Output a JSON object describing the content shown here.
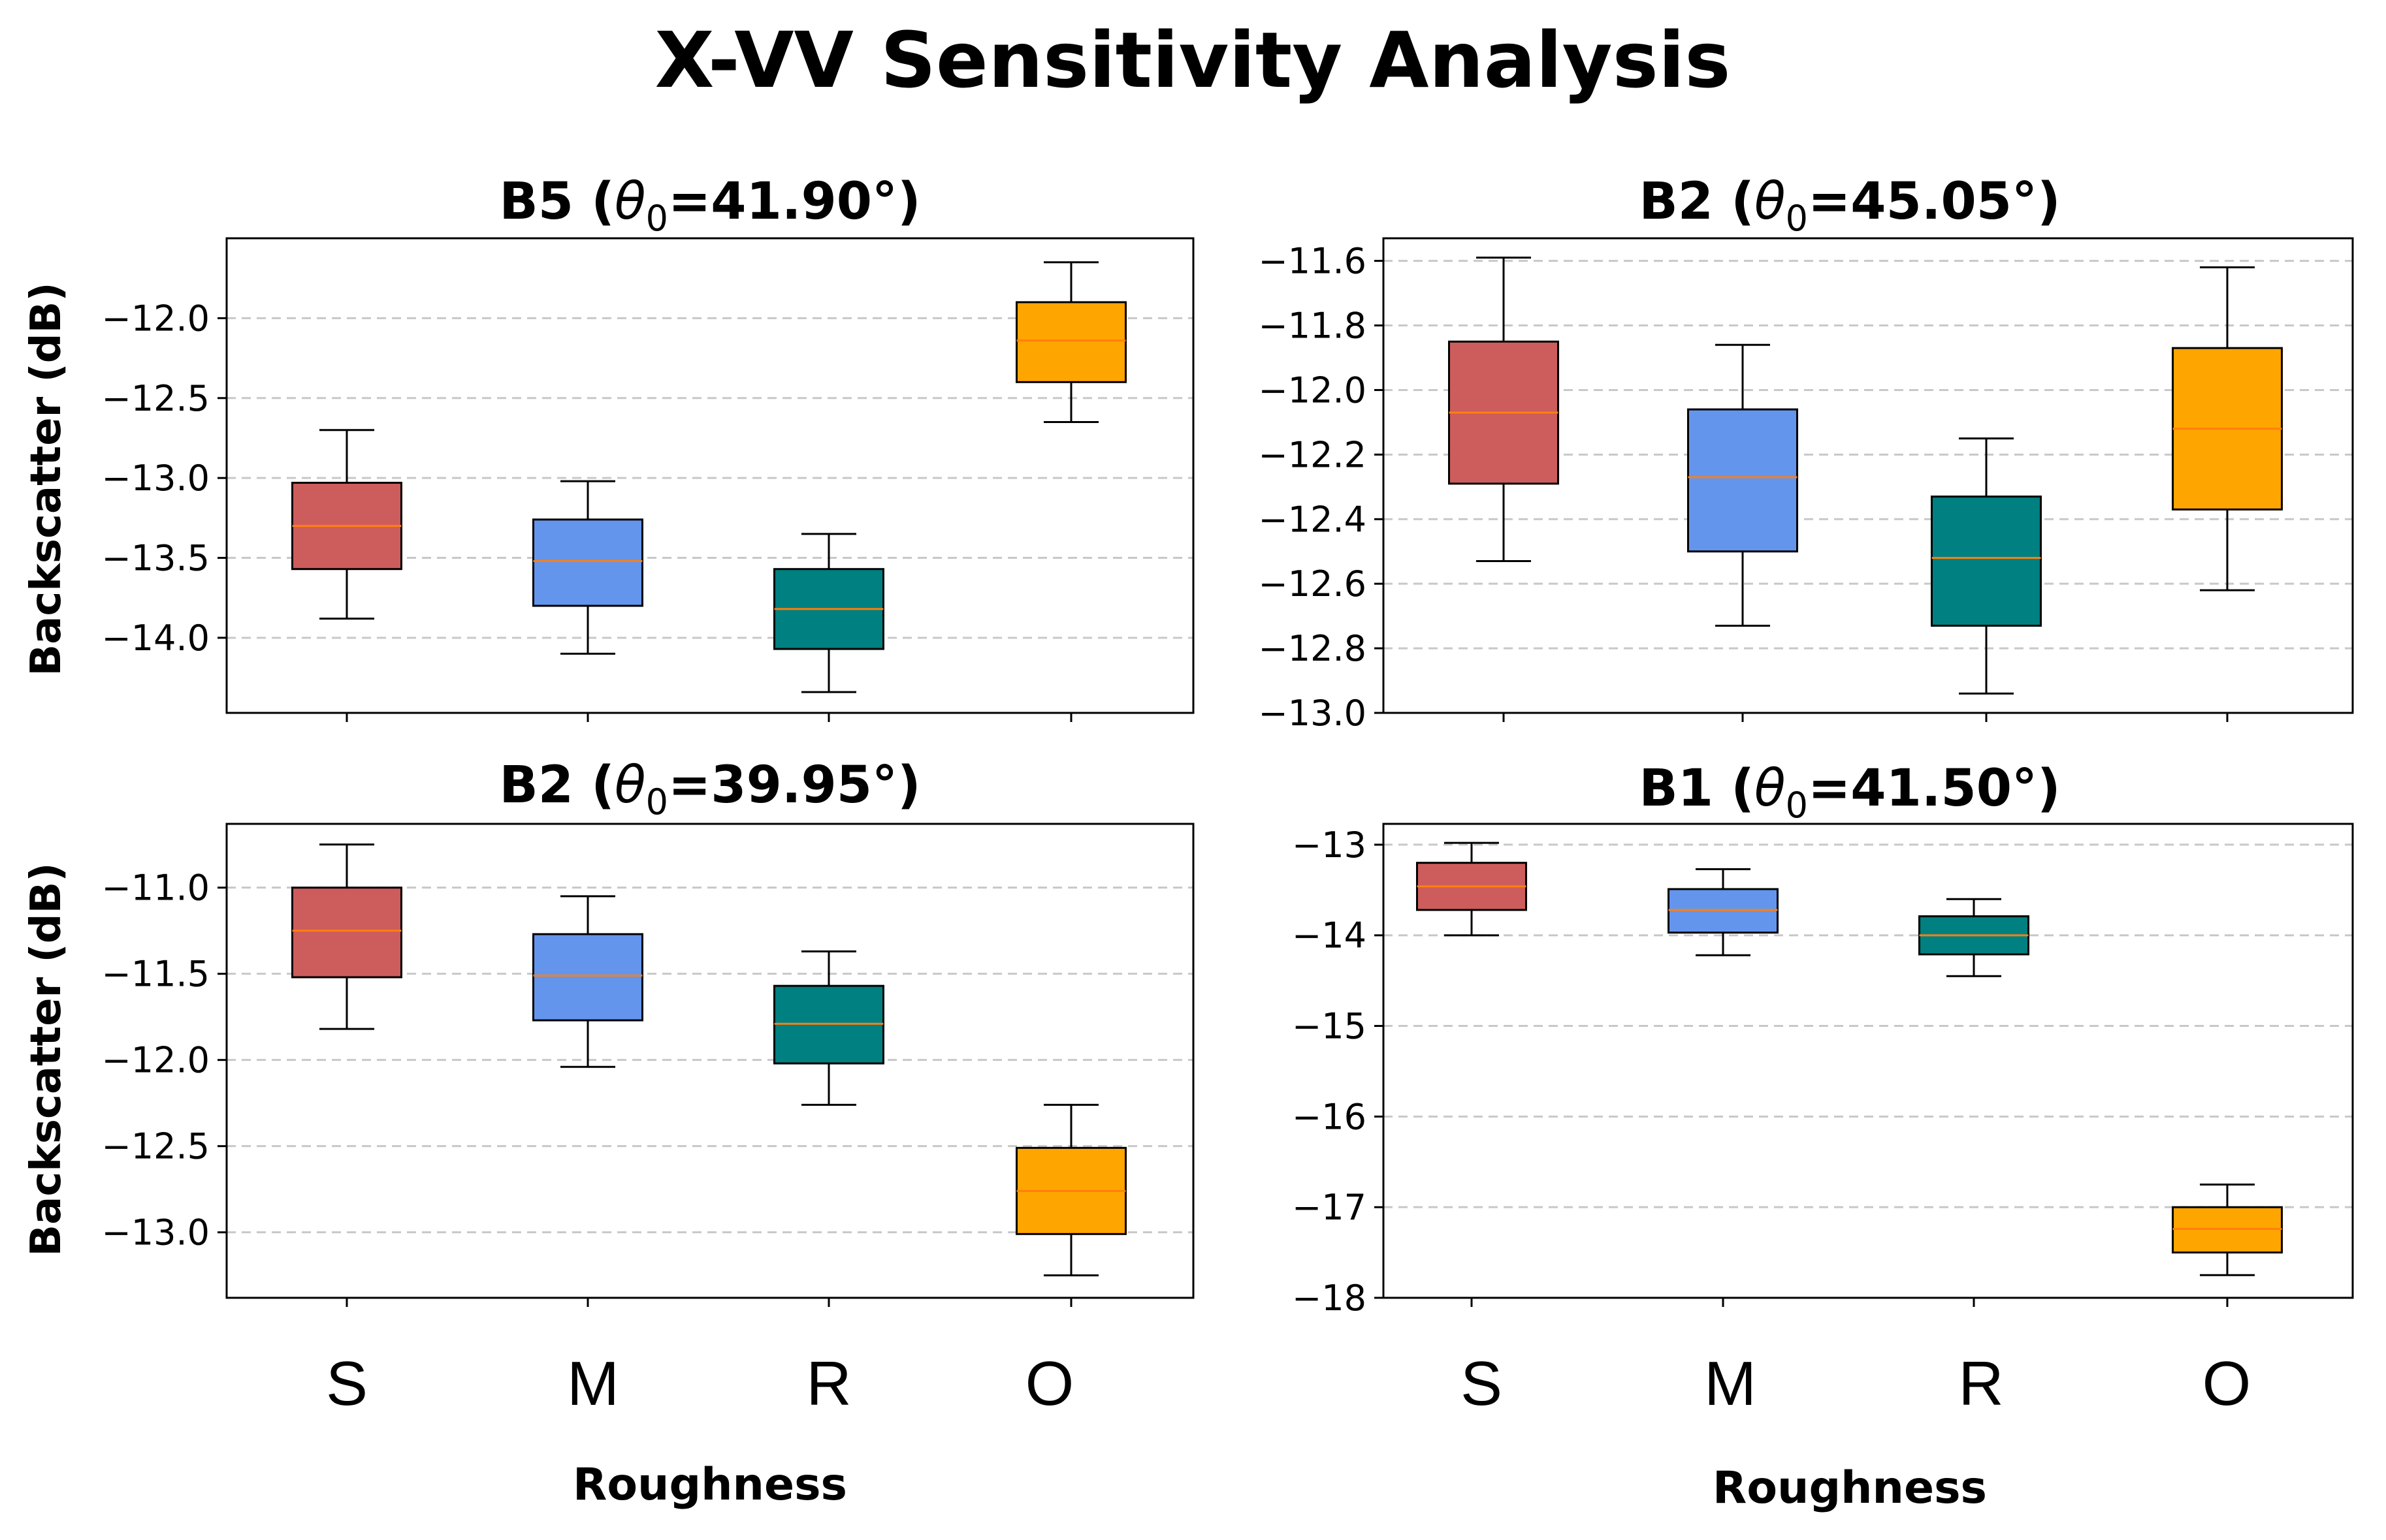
{
  "title": "X-VV Sensitivity Analysis",
  "ylabel": "Backscatter (dB)",
  "xlabel": "Roughness",
  "categories": [
    "S",
    "M",
    "R",
    "O"
  ],
  "colors": {
    "S": "#cd5c5c",
    "M": "#6495ed",
    "R": "#008080",
    "O": "#ffa500",
    "median": "#ff7f0e",
    "grid": "#c8c8c8",
    "axis": "#000000"
  },
  "panel_titles": [
    {
      "band": "B5",
      "theta_symbol": "θ",
      "theta_sub": "0",
      "value": "=41.90°)"
    },
    {
      "band": "B2",
      "theta_symbol": "θ",
      "theta_sub": "0",
      "value": "=45.05°)"
    },
    {
      "band": "B2",
      "theta_symbol": "θ",
      "theta_sub": "0",
      "value": "=39.95°)"
    },
    {
      "band": "B1",
      "theta_symbol": "θ",
      "theta_sub": "0",
      "value": "=41.50°)"
    }
  ],
  "chart_data": [
    {
      "type": "box",
      "title": "B5 (θ0=41.90°)",
      "xlabel": "",
      "ylabel": "Backscatter (dB)",
      "ylim": [
        -14.47,
        -11.5
      ],
      "yticks": [
        -12.0,
        -12.5,
        -13.0,
        -13.5,
        -14.0
      ],
      "ytick_labels": [
        "−12.0",
        "−12.5",
        "−13.0",
        "−13.5",
        "−14.0"
      ],
      "grid": true,
      "categories": [
        "S",
        "M",
        "R",
        "O"
      ],
      "boxes": [
        {
          "category": "S",
          "whisker_high": -12.7,
          "q3": -13.03,
          "median": -13.3,
          "q1": -13.57,
          "whisker_low": -13.88
        },
        {
          "category": "M",
          "whisker_high": -13.02,
          "q3": -13.26,
          "median": -13.52,
          "q1": -13.8,
          "whisker_low": -14.1
        },
        {
          "category": "R",
          "whisker_high": -13.35,
          "q3": -13.57,
          "median": -13.82,
          "q1": -14.07,
          "whisker_low": -14.34
        },
        {
          "category": "O",
          "whisker_high": -11.65,
          "q3": -11.9,
          "median": -12.14,
          "q1": -12.4,
          "whisker_low": -12.65
        }
      ]
    },
    {
      "type": "box",
      "title": "B2 (θ0=45.05°)",
      "xlabel": "",
      "ylabel": "",
      "ylim": [
        -13.0,
        -11.53
      ],
      "yticks": [
        -11.6,
        -11.8,
        -12.0,
        -12.2,
        -12.4,
        -12.6,
        -12.8,
        -13.0
      ],
      "ytick_labels": [
        "−11.6",
        "−11.8",
        "−12.0",
        "−12.2",
        "−12.4",
        "−12.6",
        "−12.8",
        "−13.0"
      ],
      "grid": true,
      "categories": [
        "S",
        "M",
        "R",
        "O"
      ],
      "boxes": [
        {
          "category": "S",
          "whisker_high": -11.59,
          "q3": -11.85,
          "median": -12.07,
          "q1": -12.29,
          "whisker_low": -12.53
        },
        {
          "category": "M",
          "whisker_high": -11.86,
          "q3": -12.06,
          "median": -12.27,
          "q1": -12.5,
          "whisker_low": -12.73
        },
        {
          "category": "R",
          "whisker_high": -12.15,
          "q3": -12.33,
          "median": -12.52,
          "q1": -12.73,
          "whisker_low": -12.94
        },
        {
          "category": "O",
          "whisker_high": -11.62,
          "q3": -11.87,
          "median": -12.12,
          "q1": -12.37,
          "whisker_low": -12.62
        }
      ]
    },
    {
      "type": "box",
      "title": "B2 (θ0=39.95°)",
      "xlabel": "Roughness",
      "ylabel": "Backscatter (dB)",
      "ylim": [
        -13.38,
        -10.63
      ],
      "yticks": [
        -11.0,
        -11.5,
        -12.0,
        -12.5,
        -13.0
      ],
      "ytick_labels": [
        "−11.0",
        "−11.5",
        "−12.0",
        "−12.5",
        "−13.0"
      ],
      "grid": true,
      "categories": [
        "S",
        "M",
        "R",
        "O"
      ],
      "boxes": [
        {
          "category": "S",
          "whisker_high": -10.75,
          "q3": -11.0,
          "median": -11.25,
          "q1": -11.52,
          "whisker_low": -11.82
        },
        {
          "category": "M",
          "whisker_high": -11.05,
          "q3": -11.27,
          "median": -11.51,
          "q1": -11.77,
          "whisker_low": -12.04
        },
        {
          "category": "R",
          "whisker_high": -11.37,
          "q3": -11.57,
          "median": -11.79,
          "q1": -12.02,
          "whisker_low": -12.26
        },
        {
          "category": "O",
          "whisker_high": -12.26,
          "q3": -12.51,
          "median": -12.76,
          "q1": -13.01,
          "whisker_low": -13.25
        }
      ]
    },
    {
      "type": "box",
      "title": "B1 (θ0=41.50°)",
      "xlabel": "Roughness",
      "ylabel": "",
      "ylim": [
        -18.0,
        -12.77
      ],
      "yticks": [
        -13,
        -14,
        -15,
        -16,
        -17,
        -18
      ],
      "ytick_labels": [
        "−13",
        "−14",
        "−15",
        "−16",
        "−17",
        "−18"
      ],
      "grid": true,
      "categories": [
        "S",
        "M",
        "R",
        "O"
      ],
      "boxes": [
        {
          "category": "S",
          "whisker_high": -12.98,
          "q3": -13.2,
          "median": -13.46,
          "q1": -13.72,
          "whisker_low": -14.0
        },
        {
          "category": "M",
          "whisker_high": -13.27,
          "q3": -13.49,
          "median": -13.72,
          "q1": -13.97,
          "whisker_low": -14.22
        },
        {
          "category": "R",
          "whisker_high": -13.6,
          "q3": -13.79,
          "median": -14.0,
          "q1": -14.21,
          "whisker_low": -14.45
        },
        {
          "category": "O",
          "whisker_high": -16.75,
          "q3": -17.0,
          "median": -17.24,
          "q1": -17.5,
          "whisker_low": -17.75
        }
      ]
    }
  ]
}
